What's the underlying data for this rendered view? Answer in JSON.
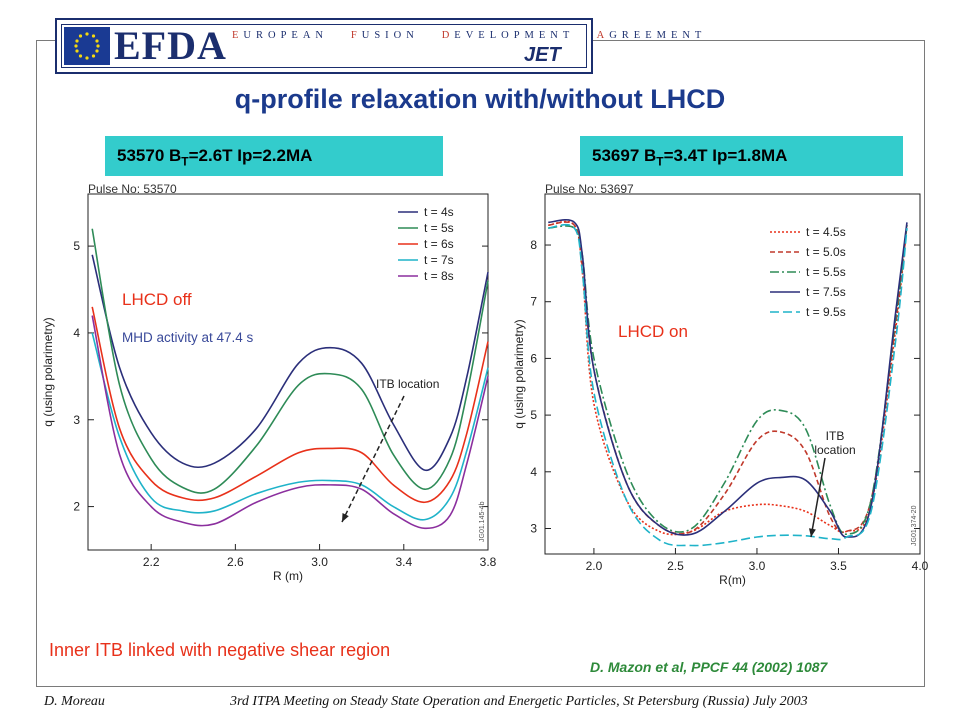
{
  "header": {
    "logo": "EFDA",
    "agreement_words": [
      "EUROPEAN",
      "FUSION",
      "DEVELOPMENT",
      "AGREEMENT"
    ],
    "jet": "JET"
  },
  "title": "q-profile relaxation with/without LHCD",
  "labels": {
    "left": {
      "num": "53570 B",
      "sub": "T",
      "rest": "=2.6T Ip=2.2MA"
    },
    "right": {
      "num": "53697 B",
      "sub": "T",
      "rest": "=3.4T Ip=1.8MA"
    }
  },
  "annotations": {
    "lhcd_off": "LHCD off",
    "mhd": "MHD activity at 47.4 s",
    "lhcd_on": "LHCD on"
  },
  "footer": {
    "note": "Inner ITB linked with negative shear region",
    "citation": "D. Mazon et al, PPCF 44 (2002) 1087",
    "author": "D. Moreau",
    "meeting": "3rd ITPA Meeting on Steady State Operation and Energetic Particles, St Petersburg (Russia) July 2003"
  },
  "colors": {
    "title": "#1b3a8c",
    "label_bg": "#33cccc",
    "annotation_red": "#e8311a",
    "citation_green": "#2e8a3a"
  },
  "chart_data": [
    {
      "type": "line",
      "header": "Pulse No: 53570",
      "xlabel": "R (m)",
      "ylabel": "q (using polarimetry)",
      "xlim": [
        1.9,
        3.8
      ],
      "ylim": [
        1.5,
        5.6
      ],
      "xticks": [
        "2.2",
        "2.6",
        "3.0",
        "3.4",
        "3.8"
      ],
      "yticks": [
        "2",
        "3",
        "4",
        "5"
      ],
      "annotation": "ITB location",
      "watermark": "JG01.145-4b",
      "series": [
        {
          "name": "t = 4s",
          "color": "#2b2f7a",
          "dash": "",
          "x": [
            1.92,
            2.05,
            2.2,
            2.35,
            2.5,
            2.7,
            2.9,
            3.05,
            3.2,
            3.35,
            3.5,
            3.62,
            3.7,
            3.8
          ],
          "y": [
            4.9,
            3.6,
            2.85,
            2.5,
            2.5,
            2.9,
            3.65,
            3.83,
            3.65,
            2.95,
            2.42,
            2.8,
            3.5,
            4.7
          ]
        },
        {
          "name": "t = 5s",
          "color": "#2e8b57",
          "dash": "",
          "x": [
            1.92,
            2.05,
            2.2,
            2.35,
            2.5,
            2.7,
            2.9,
            3.05,
            3.2,
            3.35,
            3.5,
            3.62,
            3.7,
            3.8
          ],
          "y": [
            5.2,
            3.4,
            2.55,
            2.22,
            2.2,
            2.7,
            3.4,
            3.53,
            3.35,
            2.6,
            2.2,
            2.55,
            3.3,
            4.6
          ]
        },
        {
          "name": "t = 6s",
          "color": "#e8311a",
          "dash": "",
          "x": [
            1.92,
            2.05,
            2.2,
            2.35,
            2.5,
            2.7,
            2.9,
            3.05,
            3.2,
            3.35,
            3.5,
            3.62,
            3.7,
            3.8
          ],
          "y": [
            4.3,
            2.9,
            2.3,
            2.1,
            2.1,
            2.35,
            2.62,
            2.67,
            2.62,
            2.25,
            2.05,
            2.3,
            2.85,
            3.9
          ]
        },
        {
          "name": "t = 7s",
          "color": "#1fb3c9",
          "dash": "",
          "x": [
            1.92,
            2.05,
            2.2,
            2.35,
            2.5,
            2.7,
            2.9,
            3.05,
            3.2,
            3.35,
            3.5,
            3.62,
            3.7,
            3.8
          ],
          "y": [
            4.0,
            2.8,
            2.1,
            1.95,
            1.95,
            2.15,
            2.28,
            2.3,
            2.25,
            2.0,
            1.85,
            2.1,
            2.65,
            3.6
          ]
        },
        {
          "name": "t = 8s",
          "color": "#8b2f9e",
          "dash": "",
          "x": [
            1.92,
            2.05,
            2.2,
            2.35,
            2.5,
            2.7,
            2.9,
            3.05,
            3.2,
            3.35,
            3.5,
            3.62,
            3.7,
            3.8
          ],
          "y": [
            4.2,
            2.6,
            2.0,
            1.82,
            1.8,
            2.05,
            2.22,
            2.25,
            2.2,
            1.92,
            1.75,
            1.9,
            2.5,
            3.5
          ]
        }
      ]
    },
    {
      "type": "line",
      "header": "Pulse No: 53697",
      "xlabel": "R(m)",
      "ylabel": "q (using polarimetry)",
      "xlim": [
        1.7,
        4.0
      ],
      "ylim": [
        2.55,
        8.9
      ],
      "xticks": [
        "2.0",
        "2.5",
        "3.0",
        "3.5",
        "4.0"
      ],
      "yticks": [
        "3",
        "4",
        "5",
        "6",
        "7",
        "8"
      ],
      "annotation": "ITB location",
      "watermark": "JG01.374-20",
      "series": [
        {
          "name": "t = 4.5s",
          "color": "#e8311a",
          "dash": "2,2",
          "x": [
            1.72,
            1.88,
            1.93,
            2.0,
            2.2,
            2.4,
            2.6,
            2.8,
            3.0,
            3.15,
            3.3,
            3.45,
            3.55,
            3.7,
            3.85,
            3.92
          ],
          "y": [
            8.35,
            8.35,
            7.5,
            5.2,
            3.5,
            2.95,
            2.95,
            3.3,
            3.42,
            3.4,
            3.3,
            3.05,
            2.95,
            3.4,
            6.5,
            8.35
          ]
        },
        {
          "name": "t = 5.0s",
          "color": "#c0392b",
          "dash": "5,3",
          "x": [
            1.72,
            1.88,
            1.93,
            2.0,
            2.2,
            2.4,
            2.6,
            2.8,
            3.0,
            3.15,
            3.3,
            3.45,
            3.55,
            3.7,
            3.85,
            3.92
          ],
          "y": [
            8.35,
            8.35,
            7.6,
            5.8,
            3.8,
            3.05,
            2.95,
            3.6,
            4.55,
            4.7,
            4.35,
            3.2,
            2.95,
            3.5,
            6.6,
            8.35
          ]
        },
        {
          "name": "t = 5.5s",
          "color": "#2e8b57",
          "dash": "9,3,2,3",
          "x": [
            1.72,
            1.88,
            1.93,
            2.0,
            2.2,
            2.4,
            2.6,
            2.8,
            3.0,
            3.15,
            3.3,
            3.45,
            3.55,
            3.7,
            3.85,
            3.92
          ],
          "y": [
            8.3,
            8.3,
            7.8,
            6.0,
            4.0,
            3.1,
            3.0,
            3.8,
            4.9,
            5.08,
            4.75,
            3.4,
            2.9,
            3.5,
            6.7,
            8.35
          ]
        },
        {
          "name": "t = 7.5s",
          "color": "#2b2f7a",
          "dash": "",
          "x": [
            1.72,
            1.88,
            1.93,
            2.0,
            2.2,
            2.4,
            2.6,
            2.8,
            3.0,
            3.15,
            3.3,
            3.45,
            3.55,
            3.7,
            3.85,
            3.92
          ],
          "y": [
            8.4,
            8.4,
            7.8,
            5.8,
            3.8,
            3.05,
            2.9,
            3.3,
            3.8,
            3.9,
            3.85,
            3.3,
            2.85,
            3.4,
            6.8,
            8.4
          ]
        },
        {
          "name": "t = 9.5s",
          "color": "#1fb3c9",
          "dash": "9,4",
          "x": [
            1.72,
            1.88,
            1.93,
            2.0,
            2.2,
            2.4,
            2.6,
            2.8,
            3.0,
            3.15,
            3.3,
            3.45,
            3.55,
            3.7,
            3.85,
            3.92
          ],
          "y": [
            8.3,
            8.3,
            7.5,
            5.4,
            3.5,
            2.8,
            2.7,
            2.75,
            2.85,
            2.88,
            2.87,
            2.82,
            2.85,
            3.3,
            6.3,
            8.3
          ]
        }
      ]
    }
  ]
}
